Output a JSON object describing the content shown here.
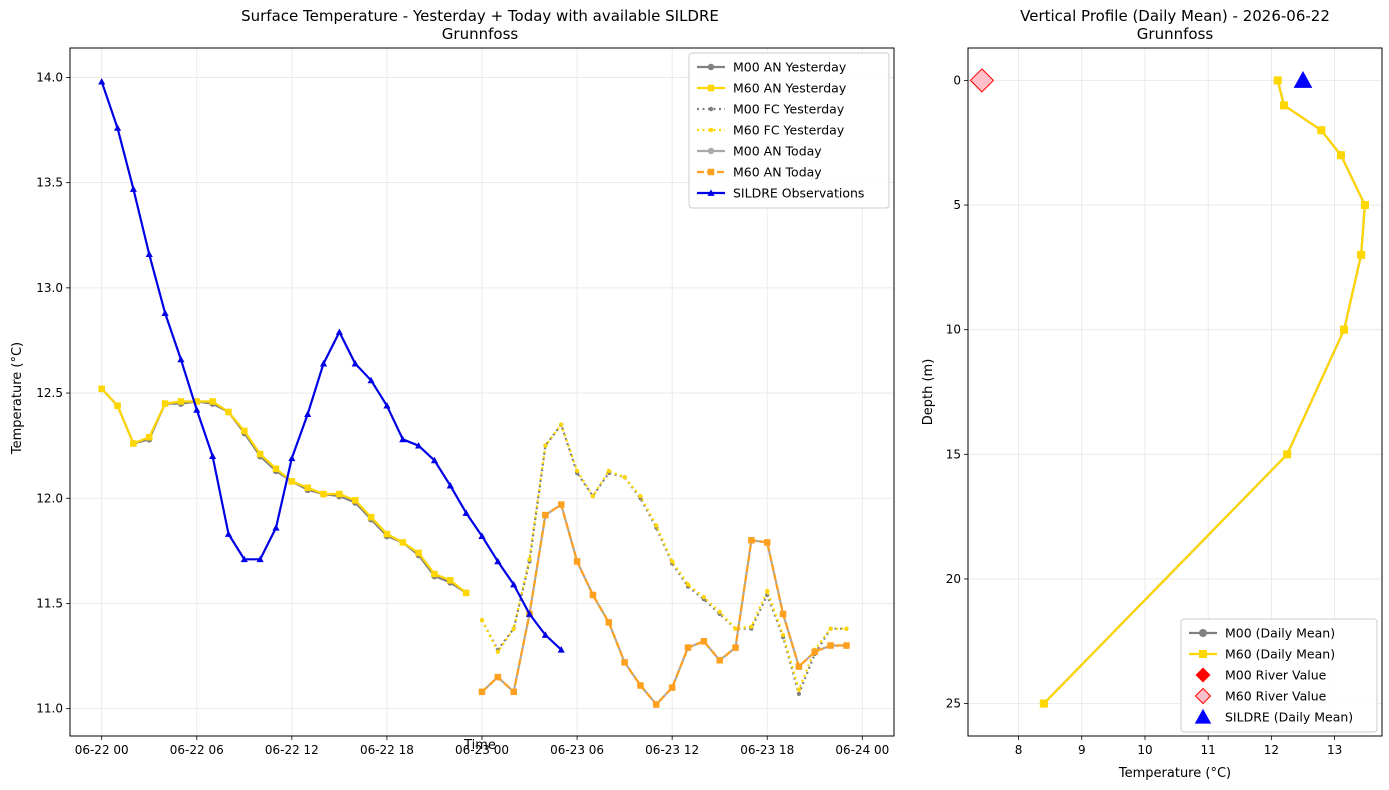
{
  "chart_data": [
    {
      "type": "line",
      "title": "Surface Temperature - Yesterday + Today with available SILDRE",
      "subtitle": "Grunnfoss",
      "xlabel": "Time",
      "ylabel": "Temperature (°C)",
      "x_unit": "hours from 06-22 00:00",
      "xlim": [
        -2.0,
        50.0
      ],
      "ylim": [
        10.87,
        14.14
      ],
      "xticks": [
        0,
        6,
        12,
        18,
        24,
        30,
        36,
        42,
        48
      ],
      "xtick_labels": [
        "06-22 00",
        "06-22 06",
        "06-22 12",
        "06-22 18",
        "06-23 00",
        "06-23 06",
        "06-23 12",
        "06-23 18",
        "06-24 00"
      ],
      "yticks": [
        11.0,
        11.5,
        12.0,
        12.5,
        13.0,
        13.5,
        14.0
      ],
      "ytick_labels": [
        "11.0",
        "11.5",
        "12.0",
        "12.5",
        "13.0",
        "13.5",
        "14.0"
      ],
      "grid": true,
      "legend_position": "upper-right",
      "series": [
        {
          "name": "M00 AN Yesterday",
          "color": "#808080",
          "style": "solid",
          "marker": "circle",
          "x": [
            0,
            1,
            2,
            3,
            4,
            5,
            6,
            7,
            8,
            9,
            10,
            11,
            12,
            13,
            14,
            15,
            16,
            17,
            18,
            19,
            20,
            21,
            22,
            23
          ],
          "y": [
            12.52,
            12.44,
            12.26,
            12.28,
            12.45,
            12.45,
            12.46,
            12.45,
            12.41,
            12.31,
            12.2,
            12.13,
            12.08,
            12.04,
            12.02,
            12.01,
            11.98,
            11.9,
            11.82,
            11.79,
            11.73,
            11.63,
            11.6,
            11.55
          ]
        },
        {
          "name": "M60 AN Yesterday",
          "color": "#FFD700",
          "style": "solid",
          "marker": "square",
          "x": [
            0,
            1,
            2,
            3,
            4,
            5,
            6,
            7,
            8,
            9,
            10,
            11,
            12,
            13,
            14,
            15,
            16,
            17,
            18,
            19,
            20,
            21,
            22,
            23
          ],
          "y": [
            12.52,
            12.44,
            12.26,
            12.29,
            12.45,
            12.46,
            12.46,
            12.46,
            12.41,
            12.32,
            12.21,
            12.14,
            12.08,
            12.05,
            12.02,
            12.02,
            11.99,
            11.91,
            11.83,
            11.79,
            11.74,
            11.64,
            11.61,
            11.55
          ]
        },
        {
          "name": "M00 FC Yesterday",
          "color": "#808080",
          "style": "dotted",
          "marker": "circle",
          "x": [
            24,
            25,
            26,
            27,
            28,
            29,
            30,
            31,
            32,
            33,
            34,
            35,
            36,
            37,
            38,
            39,
            40,
            41,
            42,
            43,
            44,
            45,
            46,
            47
          ],
          "y": [
            11.42,
            11.28,
            11.38,
            11.7,
            12.25,
            12.35,
            12.12,
            12.01,
            12.12,
            12.1,
            12.0,
            11.86,
            11.69,
            11.58,
            11.52,
            11.45,
            11.38,
            11.38,
            11.54,
            11.34,
            11.07,
            11.26,
            11.38,
            11.38
          ]
        },
        {
          "name": "M60 FC Yesterday",
          "color": "#FFD700",
          "style": "dotted",
          "marker": "circle",
          "x": [
            24,
            25,
            26,
            27,
            28,
            29,
            30,
            31,
            32,
            33,
            34,
            35,
            36,
            37,
            38,
            39,
            40,
            41,
            42,
            43,
            44,
            45,
            46,
            47
          ],
          "y": [
            11.42,
            11.27,
            11.38,
            11.71,
            12.25,
            12.35,
            12.13,
            12.01,
            12.13,
            12.1,
            12.01,
            11.87,
            11.7,
            11.59,
            11.53,
            11.46,
            11.38,
            11.39,
            11.56,
            11.35,
            11.09,
            11.28,
            11.38,
            11.38
          ]
        },
        {
          "name": "M00 AN Today",
          "color": "#A9A9A9",
          "style": "solid",
          "marker": "circle",
          "x": [
            24,
            25,
            26,
            27,
            28,
            29,
            30,
            31,
            32,
            33,
            34,
            35,
            36,
            37,
            38,
            39,
            40,
            41,
            42,
            43,
            44,
            45,
            46,
            47
          ],
          "y": [
            11.08,
            11.15,
            11.08,
            11.45,
            11.92,
            11.97,
            11.7,
            11.54,
            11.41,
            11.22,
            11.11,
            11.02,
            11.1,
            11.29,
            11.32,
            11.23,
            11.29,
            11.8,
            11.79,
            11.45,
            11.2,
            11.27,
            11.3,
            11.3
          ]
        },
        {
          "name": "M60 AN Today",
          "color": "#FFA01E",
          "style": "dashed",
          "marker": "square",
          "x": [
            24,
            25,
            26,
            27,
            28,
            29,
            30,
            31,
            32,
            33,
            34,
            35,
            36,
            37,
            38,
            39,
            40,
            41,
            42,
            43,
            44,
            45,
            46,
            47
          ],
          "y": [
            11.08,
            11.15,
            11.08,
            11.45,
            11.92,
            11.97,
            11.7,
            11.54,
            11.41,
            11.22,
            11.11,
            11.02,
            11.1,
            11.29,
            11.32,
            11.23,
            11.29,
            11.8,
            11.79,
            11.45,
            11.2,
            11.27,
            11.3,
            11.3
          ]
        },
        {
          "name": "SILDRE Observations",
          "color": "#0000E6",
          "style": "solid",
          "marker": "triangle",
          "x": [
            0,
            1,
            2,
            3,
            4,
            5,
            6,
            7,
            8,
            9,
            10,
            11,
            12,
            13,
            14,
            15,
            16,
            17,
            18,
            19,
            20,
            21,
            22,
            23,
            24,
            25,
            26,
            27,
            28,
            29
          ],
          "y": [
            13.98,
            13.76,
            13.47,
            13.16,
            12.88,
            12.66,
            12.42,
            12.2,
            11.83,
            11.71,
            11.71,
            11.86,
            12.19,
            12.4,
            12.64,
            12.79,
            12.64,
            12.56,
            12.44,
            12.28,
            12.25,
            12.18,
            12.06,
            11.93,
            11.82,
            11.7,
            11.59,
            11.45,
            11.35,
            11.28
          ]
        }
      ]
    },
    {
      "type": "line",
      "title": "Vertical Profile (Daily Mean) - 2026-06-22",
      "subtitle": "Grunnfoss",
      "xlabel": "Temperature (°C)",
      "ylabel": "Depth (m)",
      "xlim": [
        7.2,
        13.75
      ],
      "ylim": [
        26.3,
        -1.3
      ],
      "y_inverted": true,
      "xticks": [
        8,
        9,
        10,
        11,
        12,
        13
      ],
      "xtick_labels": [
        "8",
        "9",
        "10",
        "11",
        "12",
        "13"
      ],
      "yticks": [
        0,
        5,
        10,
        15,
        20,
        25
      ],
      "ytick_labels": [
        "0",
        "5",
        "10",
        "15",
        "20",
        "25"
      ],
      "grid": true,
      "legend_position": "lower-right",
      "series": [
        {
          "name": "M00 (Daily Mean)",
          "color": "#808080",
          "style": "solid",
          "marker": "circle",
          "x": [
            12.1,
            12.2,
            12.79,
            13.1,
            13.48,
            13.42,
            13.15,
            12.25,
            8.4
          ],
          "y": [
            0,
            1,
            2,
            3,
            5,
            7,
            10,
            15,
            25
          ]
        },
        {
          "name": "M60 (Daily Mean)",
          "color": "#FFD700",
          "style": "solid",
          "marker": "square",
          "x": [
            12.1,
            12.2,
            12.79,
            13.1,
            13.48,
            13.42,
            13.15,
            12.25,
            8.4
          ],
          "y": [
            0,
            1,
            2,
            3,
            5,
            7,
            10,
            15,
            25
          ]
        }
      ],
      "markers": [
        {
          "name": "M00 River Value",
          "color": "#FF0000",
          "marker": "diamond",
          "x": 7.42,
          "y": 0
        },
        {
          "name": "M60 River Value",
          "color": "#FFC0CB",
          "edgecolor": "#FF0000",
          "marker": "diamond",
          "x": 7.42,
          "y": 0
        },
        {
          "name": "SILDRE (Daily Mean)",
          "color": "#0000FF",
          "marker": "triangle",
          "x": 12.5,
          "y": 0
        }
      ]
    }
  ]
}
